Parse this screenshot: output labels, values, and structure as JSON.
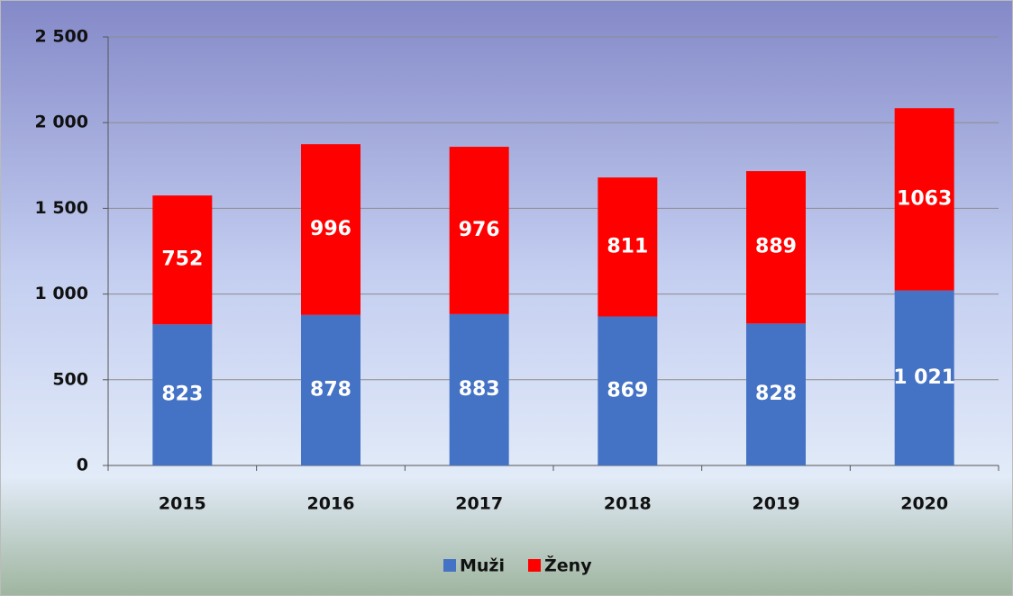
{
  "chart_data": {
    "type": "stacked_bar",
    "categories": [
      "2015",
      "2016",
      "2017",
      "2018",
      "2019",
      "2020"
    ],
    "series": [
      {
        "name": "Muži",
        "color": "#4472c4",
        "values": [
          823,
          878,
          883,
          869,
          828,
          1021
        ],
        "value_labels": [
          "823",
          "878",
          "883",
          "869",
          "828",
          "1 021"
        ]
      },
      {
        "name": "Ženy",
        "color": "#ff0000",
        "values": [
          752,
          996,
          976,
          811,
          889,
          1063
        ]
      }
    ],
    "ylim": [
      0,
      2500
    ],
    "yticks": [
      0,
      500,
      {
        "value": 1000,
        "label": "1 000"
      },
      {
        "value": 1500,
        "label": "1 500"
      },
      {
        "value": 2000,
        "label": "2 000"
      },
      {
        "value": 2500,
        "label": "2 500"
      }
    ],
    "grid": true,
    "legend": "bottom"
  }
}
